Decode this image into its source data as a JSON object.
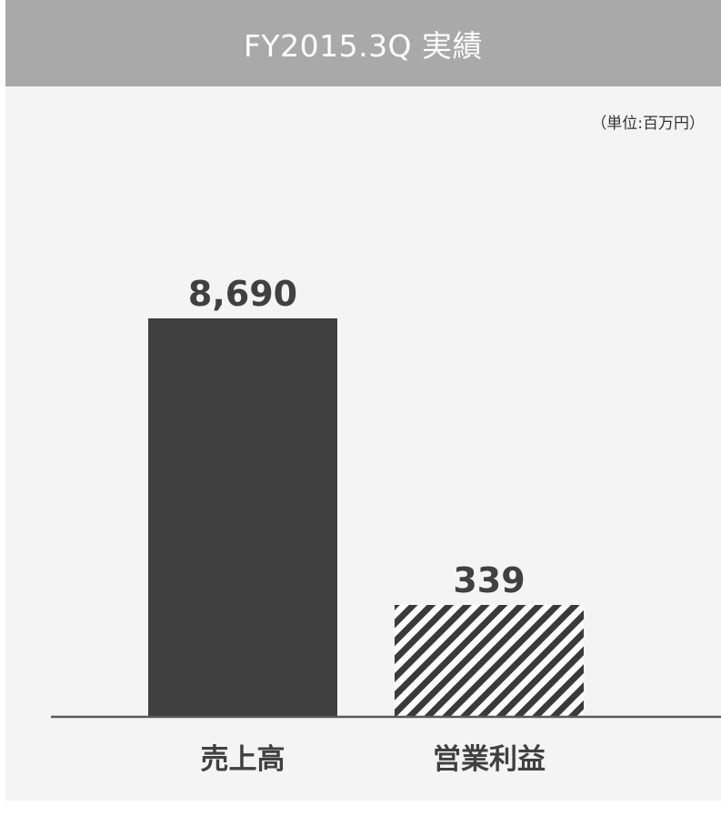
{
  "header": {
    "title": "FY2015.3Q 実績"
  },
  "unit": "（単位:百万円）",
  "colors": {
    "background": "#f4f4f4",
    "header": "#a9a9a9",
    "bar_solid": "#404040",
    "axis": "#5a5a5a",
    "text": "#404040"
  },
  "chart_data": {
    "type": "bar",
    "categories": [
      "売上高",
      "営業利益"
    ],
    "values": [
      8690,
      339
    ],
    "value_labels": [
      "8,690",
      "339"
    ],
    "bar_styles": [
      "solid",
      "hatched"
    ],
    "title": "FY2015.3Q 実績",
    "unit": "単位:百万円",
    "ylim": [
      0,
      8690
    ],
    "grid": false,
    "legend": "none"
  }
}
